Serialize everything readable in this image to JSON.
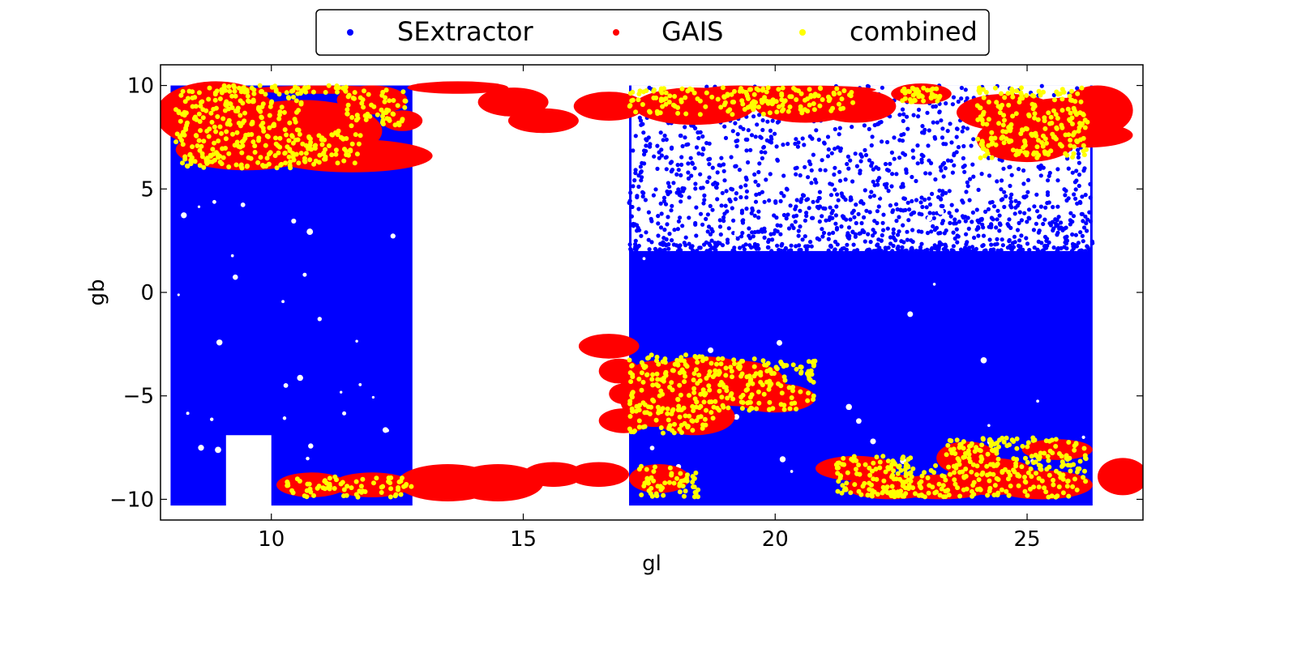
{
  "chart_data": {
    "type": "scatter",
    "xlabel": "gl",
    "ylabel": "gb",
    "xlim": [
      7.8,
      27.3
    ],
    "ylim": [
      -11,
      11
    ],
    "xticks": [
      10,
      15,
      20,
      25
    ],
    "yticks": [
      -10,
      -5,
      0,
      5,
      10
    ],
    "xtick_labels": [
      "10",
      "15",
      "20",
      "25"
    ],
    "ytick_labels": [
      "−10",
      "−5",
      "0",
      "5",
      "10"
    ],
    "grid": false,
    "legend_placement": "top-center",
    "series": [
      {
        "name": "SExtractor",
        "color": "#0000ff",
        "marker": "dot",
        "regions": [
          {
            "x": [
              8.0,
              12.8
            ],
            "y": [
              -10.3,
              10.0
            ]
          },
          {
            "x": [
              17.1,
              26.3
            ],
            "y": [
              -10.3,
              10.0
            ]
          }
        ],
        "excluded_regions": [
          {
            "x": [
              9.1,
              10.0
            ],
            "y": [
              -11.0,
              -6.9
            ]
          }
        ],
        "density": {
          "dense_below_gb": 2.0,
          "sparse_region": {
            "x": [
              17.1,
              26.3
            ],
            "y": [
              2.0,
              10.0
            ]
          }
        }
      },
      {
        "name": "GAIS",
        "color": "#ff0000",
        "marker": "circle-patch",
        "patches": [
          {
            "x": 8.9,
            "y": 8.6,
            "rx": 1.2,
            "ry": 1.6
          },
          {
            "x": 10.6,
            "y": 7.8,
            "rx": 1.6,
            "ry": 1.5
          },
          {
            "x": 9.5,
            "y": 6.9,
            "rx": 1.4,
            "ry": 1.0
          },
          {
            "x": 11.6,
            "y": 6.6,
            "rx": 1.6,
            "ry": 0.8
          },
          {
            "x": 12.0,
            "y": 9.3,
            "rx": 0.7,
            "ry": 0.7
          },
          {
            "x": 12.6,
            "y": 8.3,
            "rx": 0.4,
            "ry": 0.5
          },
          {
            "x": 11.0,
            "y": 9.8,
            "rx": 1.4,
            "ry": 0.2
          },
          {
            "x": 13.7,
            "y": 9.9,
            "rx": 1.0,
            "ry": 0.3
          },
          {
            "x": 14.8,
            "y": 9.2,
            "rx": 0.7,
            "ry": 0.7
          },
          {
            "x": 15.4,
            "y": 8.3,
            "rx": 0.7,
            "ry": 0.6
          },
          {
            "x": 16.7,
            "y": 9.0,
            "rx": 0.7,
            "ry": 0.7
          },
          {
            "x": 16.7,
            "y": -2.6,
            "rx": 0.6,
            "ry": 0.6
          },
          {
            "x": 16.9,
            "y": -3.8,
            "rx": 0.4,
            "ry": 0.6
          },
          {
            "x": 17.0,
            "y": -4.9,
            "rx": 0.3,
            "ry": 0.5
          },
          {
            "x": 17.0,
            "y": -6.2,
            "rx": 0.5,
            "ry": 0.6
          },
          {
            "x": 13.5,
            "y": -9.2,
            "rx": 1.0,
            "ry": 0.9
          },
          {
            "x": 14.5,
            "y": -9.2,
            "rx": 0.9,
            "ry": 0.9
          },
          {
            "x": 15.6,
            "y": -8.8,
            "rx": 0.6,
            "ry": 0.6
          },
          {
            "x": 16.5,
            "y": -8.8,
            "rx": 0.6,
            "ry": 0.6
          },
          {
            "x": 10.8,
            "y": -9.3,
            "rx": 0.7,
            "ry": 0.6
          },
          {
            "x": 12.0,
            "y": -9.3,
            "rx": 0.8,
            "ry": 0.6
          },
          {
            "x": 17.7,
            "y": -9.0,
            "rx": 0.6,
            "ry": 0.7
          },
          {
            "x": 17.6,
            "y": -4.9,
            "rx": 0.7,
            "ry": 1.6
          },
          {
            "x": 18.6,
            "y": -4.3,
            "rx": 1.1,
            "ry": 1.2
          },
          {
            "x": 19.3,
            "y": -4.4,
            "rx": 0.9,
            "ry": 1.1
          },
          {
            "x": 20.0,
            "y": -5.1,
            "rx": 0.8,
            "ry": 0.7
          },
          {
            "x": 18.4,
            "y": -6.0,
            "rx": 0.8,
            "ry": 0.9
          },
          {
            "x": 18.4,
            "y": 9.0,
            "rx": 1.2,
            "ry": 0.9
          },
          {
            "x": 19.3,
            "y": 9.5,
            "rx": 1.0,
            "ry": 0.5
          },
          {
            "x": 20.6,
            "y": 9.0,
            "rx": 1.0,
            "ry": 0.8
          },
          {
            "x": 21.6,
            "y": 9.0,
            "rx": 0.8,
            "ry": 0.8
          },
          {
            "x": 20.6,
            "y": 9.8,
            "rx": 1.4,
            "ry": 0.2
          },
          {
            "x": 22.9,
            "y": 9.6,
            "rx": 0.6,
            "ry": 0.5
          },
          {
            "x": 24.6,
            "y": 8.7,
            "rx": 1.0,
            "ry": 0.9
          },
          {
            "x": 25.0,
            "y": 7.4,
            "rx": 1.0,
            "ry": 1.1
          },
          {
            "x": 25.7,
            "y": 8.2,
            "rx": 1.1,
            "ry": 1.2
          },
          {
            "x": 26.4,
            "y": 8.8,
            "rx": 0.7,
            "ry": 1.2
          },
          {
            "x": 26.2,
            "y": 7.6,
            "rx": 0.9,
            "ry": 0.6
          },
          {
            "x": 21.6,
            "y": -8.5,
            "rx": 0.8,
            "ry": 0.6
          },
          {
            "x": 22.3,
            "y": -9.4,
            "rx": 0.9,
            "ry": 0.6
          },
          {
            "x": 23.3,
            "y": -9.4,
            "rx": 1.0,
            "ry": 0.6
          },
          {
            "x": 23.8,
            "y": -8.0,
            "rx": 0.6,
            "ry": 0.8
          },
          {
            "x": 24.3,
            "y": -8.9,
            "rx": 0.9,
            "ry": 0.9
          },
          {
            "x": 25.3,
            "y": -9.3,
            "rx": 1.0,
            "ry": 0.7
          },
          {
            "x": 25.6,
            "y": -7.6,
            "rx": 0.7,
            "ry": 0.5
          },
          {
            "x": 26.9,
            "y": -8.9,
            "rx": 0.5,
            "ry": 0.9
          }
        ]
      },
      {
        "name": "combined",
        "color": "#ffff00",
        "marker": "dot",
        "regions": [
          {
            "x": [
              8.1,
              10.6
            ],
            "y": [
              6.0,
              9.9
            ]
          },
          {
            "x": [
              10.6,
              11.8
            ],
            "y": [
              6.1,
              7.8
            ]
          },
          {
            "x": [
              9.0,
              11.5
            ],
            "y": [
              9.6,
              10.0
            ]
          },
          {
            "x": [
              11.5,
              12.7
            ],
            "y": [
              8.0,
              9.8
            ]
          },
          {
            "x": [
              17.1,
              19.9
            ],
            "y": [
              8.6,
              9.9
            ]
          },
          {
            "x": [
              19.8,
              21.6
            ],
            "y": [
              8.6,
              9.9
            ]
          },
          {
            "x": [
              22.5,
              23.3
            ],
            "y": [
              9.2,
              9.9
            ]
          },
          {
            "x": [
              24.0,
              26.2
            ],
            "y": [
              6.5,
              9.9
            ]
          },
          {
            "x": [
              17.1,
              18.8
            ],
            "y": [
              -6.8,
              -3.0
            ]
          },
          {
            "x": [
              18.8,
              20.8
            ],
            "y": [
              -5.7,
              -3.2
            ]
          },
          {
            "x": [
              10.3,
              12.8
            ],
            "y": [
              -9.9,
              -8.9
            ]
          },
          {
            "x": [
              17.2,
              18.5
            ],
            "y": [
              -9.9,
              -8.4
            ]
          },
          {
            "x": [
              21.2,
              22.7
            ],
            "y": [
              -9.8,
              -7.9
            ]
          },
          {
            "x": [
              21.8,
              26.2
            ],
            "y": [
              -9.9,
              -8.3
            ]
          },
          {
            "x": [
              23.4,
              26.2
            ],
            "y": [
              -8.4,
              -7.0
            ]
          }
        ]
      }
    ]
  }
}
